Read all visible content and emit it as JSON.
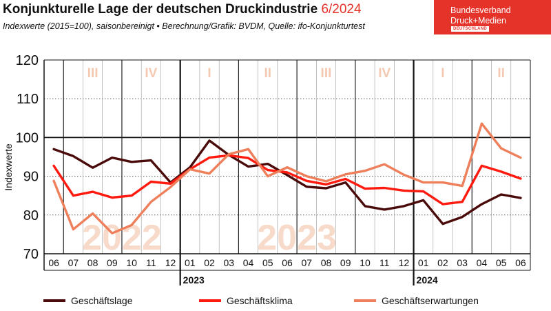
{
  "header": {
    "title": "Konjunkturelle Lage der deutschen Druckindustrie",
    "title_accent": "6/2024",
    "subtitle": "Indexwerte (2015=100), saisonbereinigt • Berechnung/Grafik: BVDM, Quelle: ifo-Konjunkturtest"
  },
  "logo": {
    "line1": "Bundesverband",
    "line2": "Druck+Medien",
    "line3": "DEUTSCHLAND"
  },
  "chart_data": {
    "type": "line",
    "title": "Konjunkturelle Lage der deutschen Druckindustrie 6/2024",
    "ylabel": "Indexwerte",
    "ylim": [
      70,
      120
    ],
    "yticks": [
      70,
      80,
      90,
      100,
      110,
      120
    ],
    "reference_line": 100,
    "grid": "horizontal dotted, vertical solid",
    "categories": [
      "06",
      "07",
      "08",
      "09",
      "10",
      "11",
      "12",
      "01",
      "02",
      "03",
      "04",
      "05",
      "06",
      "07",
      "08",
      "09",
      "10",
      "11",
      "12",
      "01",
      "02",
      "03",
      "04",
      "05",
      "06"
    ],
    "year_labels": [
      {
        "label": "2023",
        "index": 7
      },
      {
        "label": "2024",
        "index": 19
      }
    ],
    "background_year_labels": [
      {
        "label": "2022",
        "center_index": 3.5
      },
      {
        "label": "2023",
        "center_index": 12.5
      }
    ],
    "quarters": [
      {
        "label": "III",
        "from": 1,
        "to": 3
      },
      {
        "label": "IV",
        "from": 4,
        "to": 6
      },
      {
        "label": "I",
        "from": 7,
        "to": 9
      },
      {
        "label": "II",
        "from": 10,
        "to": 12
      },
      {
        "label": "III",
        "from": 13,
        "to": 15
      },
      {
        "label": "IV",
        "from": 16,
        "to": 18
      },
      {
        "label": "I",
        "from": 19,
        "to": 21
      },
      {
        "label": "II",
        "from": 22,
        "to": 24
      }
    ],
    "series": [
      {
        "name": "Geschäftslage",
        "color": "#4a0a0a",
        "values": [
          97.0,
          95.2,
          92.2,
          94.8,
          93.7,
          94.1,
          88.4,
          92.3,
          99.2,
          95.5,
          92.5,
          93.2,
          90.3,
          87.3,
          86.9,
          88.4,
          82.3,
          81.4,
          82.3,
          83.8,
          77.7,
          79.5,
          82.8,
          85.3,
          84.4
        ]
      },
      {
        "name": "Geschäftsklima",
        "color": "#ff1a0f",
        "values": [
          92.7,
          85.0,
          86.0,
          84.5,
          85.0,
          88.6,
          88.1,
          91.8,
          94.8,
          95.4,
          94.7,
          91.6,
          91.0,
          88.8,
          87.9,
          89.3,
          86.8,
          87.0,
          86.3,
          86.1,
          82.8,
          83.4,
          92.7,
          91.2,
          89.4
        ]
      },
      {
        "name": "Geschäftserwartungen",
        "color": "#ee7f5a",
        "values": [
          88.8,
          76.3,
          80.4,
          75.3,
          77.4,
          83.4,
          87.2,
          91.8,
          90.7,
          95.7,
          97.0,
          90.0,
          92.3,
          90.0,
          88.7,
          90.5,
          91.4,
          93.1,
          90.4,
          88.4,
          88.4,
          87.5,
          103.6,
          97.2,
          94.8
        ]
      }
    ],
    "legend_position": "bottom"
  }
}
